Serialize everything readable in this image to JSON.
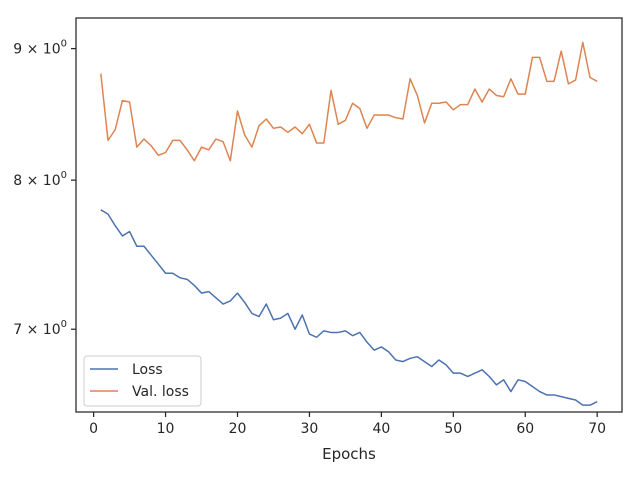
{
  "chart_data": {
    "type": "line",
    "title": "",
    "xlabel": "Epochs",
    "ylabel": "",
    "yscale": "log",
    "xlim": [
      -2.45,
      73.45
    ],
    "ylim": [
      6.5,
      9.25
    ],
    "grid": false,
    "legend_position": "lower-left",
    "x_ticks": [
      0,
      10,
      20,
      30,
      40,
      50,
      60,
      70
    ],
    "y_ticks": [
      {
        "value": 7,
        "mantissa": "7",
        "exponent": "0"
      },
      {
        "value": 8,
        "mantissa": "8",
        "exponent": "0"
      },
      {
        "value": 9,
        "mantissa": "9",
        "exponent": "0"
      }
    ],
    "tick_times": "×",
    "tick_base": "10",
    "x": [
      1,
      2,
      3,
      4,
      5,
      6,
      7,
      8,
      9,
      10,
      11,
      12,
      13,
      14,
      15,
      16,
      17,
      18,
      19,
      20,
      21,
      22,
      23,
      24,
      25,
      26,
      27,
      28,
      29,
      30,
      31,
      32,
      33,
      34,
      35,
      36,
      37,
      38,
      39,
      40,
      41,
      42,
      43,
      44,
      45,
      46,
      47,
      48,
      49,
      50,
      51,
      52,
      53,
      54,
      55,
      56,
      57,
      58,
      59,
      60,
      61,
      62,
      63,
      64,
      65,
      66,
      67,
      68,
      69,
      70
    ],
    "series": [
      {
        "name": "Loss",
        "color": "#4c72b0",
        "values": [
          7.79,
          7.76,
          7.68,
          7.61,
          7.64,
          7.54,
          7.54,
          7.48,
          7.42,
          7.36,
          7.36,
          7.33,
          7.32,
          7.28,
          7.23,
          7.24,
          7.2,
          7.16,
          7.18,
          7.23,
          7.17,
          7.1,
          7.08,
          7.16,
          7.06,
          7.07,
          7.1,
          7.0,
          7.09,
          6.97,
          6.95,
          6.99,
          6.98,
          6.98,
          6.99,
          6.96,
          6.98,
          6.92,
          6.87,
          6.89,
          6.86,
          6.81,
          6.8,
          6.82,
          6.83,
          6.8,
          6.77,
          6.81,
          6.78,
          6.73,
          6.73,
          6.71,
          6.73,
          6.75,
          6.71,
          6.66,
          6.69,
          6.62,
          6.69,
          6.68,
          6.65,
          6.62,
          6.6,
          6.6,
          6.59,
          6.58,
          6.57,
          6.54,
          6.54,
          6.56
        ]
      },
      {
        "name": "Val. loss",
        "color": "#dd8452",
        "values": [
          8.8,
          8.29,
          8.37,
          8.59,
          8.58,
          8.24,
          8.3,
          8.25,
          8.18,
          8.2,
          8.29,
          8.29,
          8.22,
          8.14,
          8.24,
          8.22,
          8.3,
          8.28,
          8.14,
          8.51,
          8.33,
          8.24,
          8.4,
          8.45,
          8.38,
          8.39,
          8.35,
          8.39,
          8.34,
          8.41,
          8.27,
          8.27,
          8.67,
          8.41,
          8.44,
          8.57,
          8.53,
          8.38,
          8.48,
          8.48,
          8.48,
          8.46,
          8.45,
          8.76,
          8.63,
          8.42,
          8.57,
          8.57,
          8.58,
          8.52,
          8.56,
          8.56,
          8.68,
          8.58,
          8.68,
          8.63,
          8.62,
          8.76,
          8.64,
          8.64,
          8.93,
          8.93,
          8.74,
          8.74,
          8.98,
          8.72,
          8.75,
          9.05,
          8.77,
          8.74
        ]
      }
    ]
  }
}
